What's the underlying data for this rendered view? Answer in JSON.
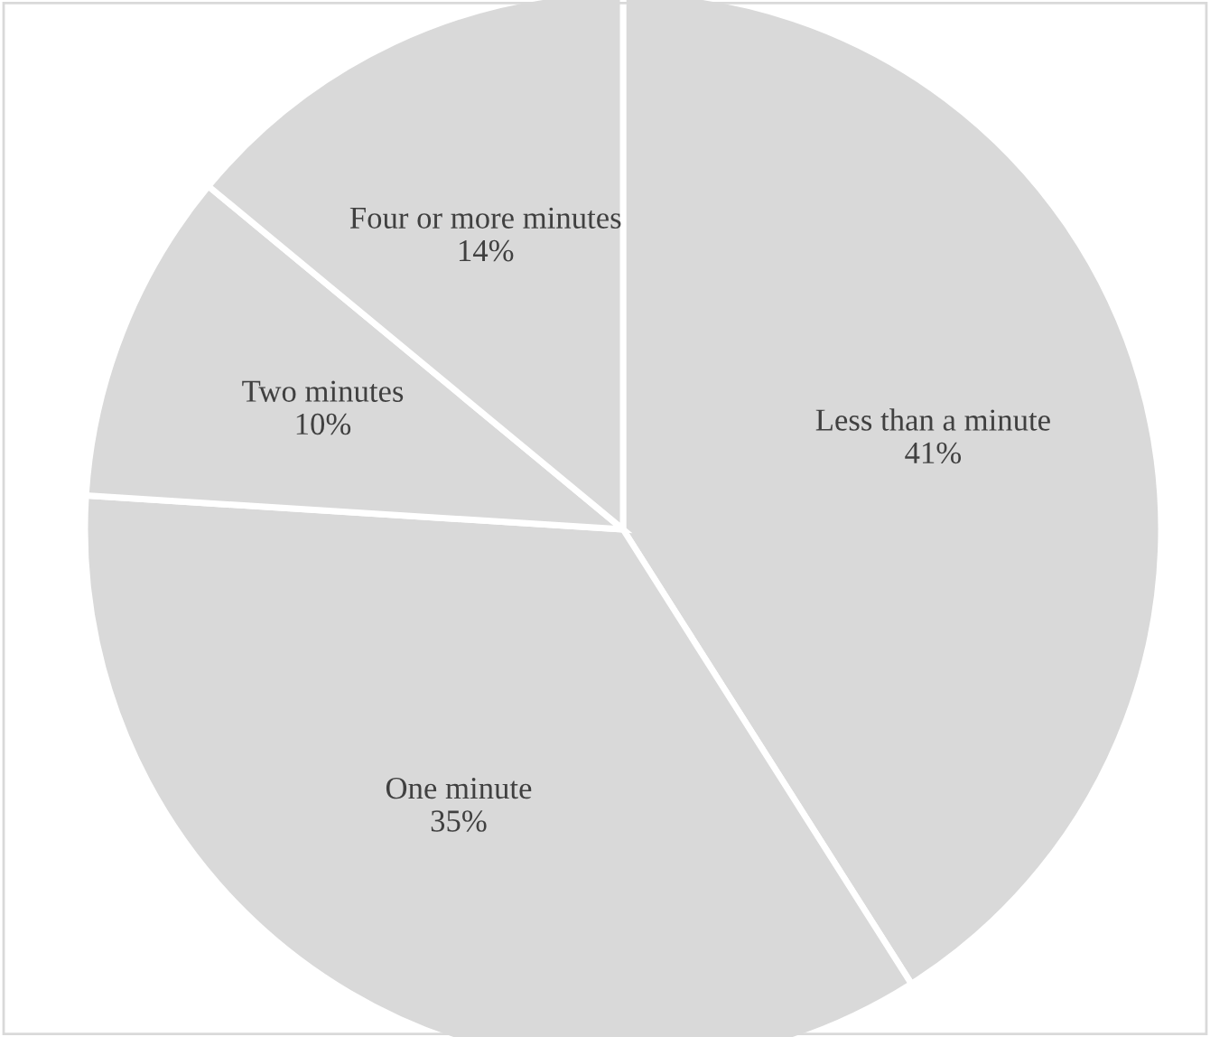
{
  "chart_data": {
    "type": "pie",
    "categories": [
      "Less than a minute",
      "One minute",
      "Two minutes",
      "Four or more minutes"
    ],
    "values": [
      41,
      35,
      10,
      14
    ],
    "colors": [
      "#d9d9d9",
      "#d9d9d9",
      "#d9d9d9",
      "#d9d9d9"
    ],
    "value_labels": [
      "41%",
      "35%",
      "10%",
      "14%"
    ]
  }
}
